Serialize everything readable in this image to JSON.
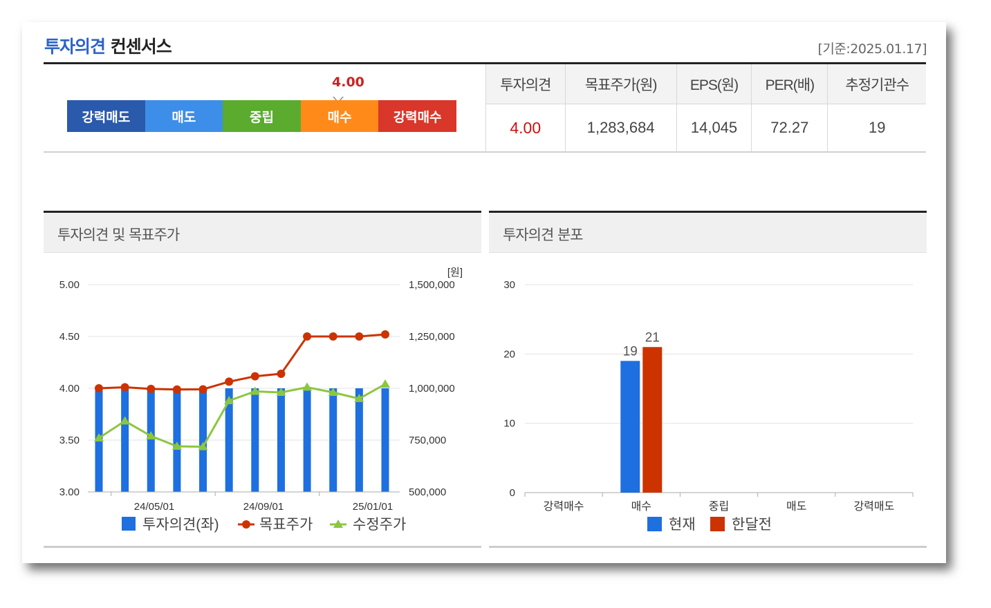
{
  "header": {
    "title_blue": "투자의견",
    "title_dark": "컨센서스",
    "date": "[기준:2025.01.17]"
  },
  "gauge": {
    "value": "4.00",
    "segments": [
      "강력매도",
      "매도",
      "중립",
      "매수",
      "강력매수"
    ]
  },
  "summary": {
    "headers": [
      "투자의견",
      "목표주가(원)",
      "EPS(원)",
      "PER(배)",
      "추정기관수"
    ],
    "values": [
      "4.00",
      "1,283,684",
      "14,045",
      "72.27",
      "19"
    ]
  },
  "left_panel": {
    "title": "투자의견 및 목표주가"
  },
  "right_panel": {
    "title": "투자의견 분포"
  },
  "chart_data": [
    {
      "type": "bar",
      "title": "투자의견 및 목표주가",
      "y_left": {
        "ticks": [
          "5.00",
          "4.50",
          "4.00",
          "3.50",
          "3.00"
        ],
        "range": [
          3,
          5
        ]
      },
      "y_right": {
        "unit_label": "[원]",
        "ticks": [
          "1,500,000",
          "1,250,000",
          "1,000,000",
          "750,000",
          "500,000"
        ],
        "range": [
          500000,
          1500000
        ]
      },
      "x_tick_labels": [
        "24/05/01",
        "24/09/01",
        "25/01/01"
      ],
      "legend": [
        "투자의견(좌)",
        "목표주가",
        "수정주가"
      ],
      "series": [
        {
          "name": "투자의견(좌)",
          "type": "bar",
          "axis": "left",
          "color": "#1e6fe0",
          "values": [
            4.0,
            4.0,
            4.0,
            4.0,
            4.0,
            4.0,
            4.0,
            4.0,
            4.0,
            4.0,
            4.0,
            4.0
          ]
        },
        {
          "name": "목표주가",
          "type": "line",
          "axis": "right",
          "color": "#cc3300",
          "values": [
            1000000,
            1005000,
            997000,
            994000,
            995000,
            1032000,
            1058000,
            1070000,
            1250000,
            1250000,
            1250000,
            1260000
          ]
        },
        {
          "name": "수정주가",
          "type": "line",
          "axis": "right",
          "color": "#8cc63f",
          "values": [
            760000,
            842000,
            770000,
            720000,
            718000,
            940000,
            985000,
            980000,
            1005000,
            980000,
            950000,
            1020000
          ]
        }
      ]
    },
    {
      "type": "bar",
      "title": "투자의견 분포",
      "categories": [
        "강력매수",
        "매수",
        "중립",
        "매도",
        "강력매도"
      ],
      "y_ticks": [
        "30",
        "20",
        "10",
        "0"
      ],
      "ylim": [
        0,
        30
      ],
      "legend": [
        "현재",
        "한달전"
      ],
      "series": [
        {
          "name": "현재",
          "color": "#1e6fe0",
          "values": [
            0,
            19,
            0,
            0,
            0
          ],
          "labels": [
            "",
            "19",
            "",
            "",
            ""
          ]
        },
        {
          "name": "한달전",
          "color": "#cc3300",
          "values": [
            0,
            21,
            0,
            0,
            0
          ],
          "labels": [
            "",
            "21",
            "",
            "",
            ""
          ]
        }
      ]
    }
  ]
}
